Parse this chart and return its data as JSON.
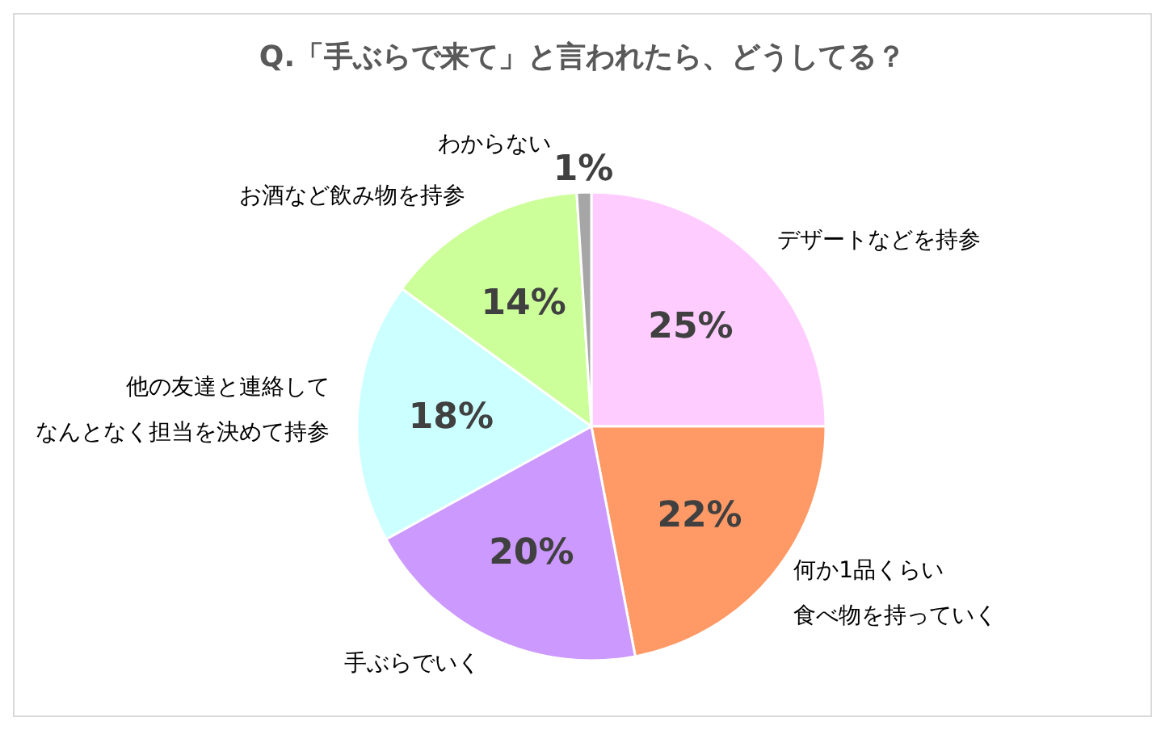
{
  "chart_data": {
    "type": "pie",
    "title": "Q.「手ぶらで来て」と言われたら、どうしてる？",
    "categories": [
      "デザートなどを持参",
      "何か1品くらい食べ物を持っていく",
      "手ぶらでいく",
      "他の友達と連絡してなんとなく担当を決めて持参",
      "お酒など飲み物を持参",
      "わからない"
    ],
    "values": [
      25,
      22,
      20,
      18,
      14,
      1
    ],
    "value_labels": [
      "25%",
      "22%",
      "20%",
      "18%",
      "14%",
      "1%"
    ],
    "colors": [
      "#ffccff",
      "#ff9966",
      "#cc99ff",
      "#ccffff",
      "#ccff99",
      "#a6a6a6"
    ]
  }
}
